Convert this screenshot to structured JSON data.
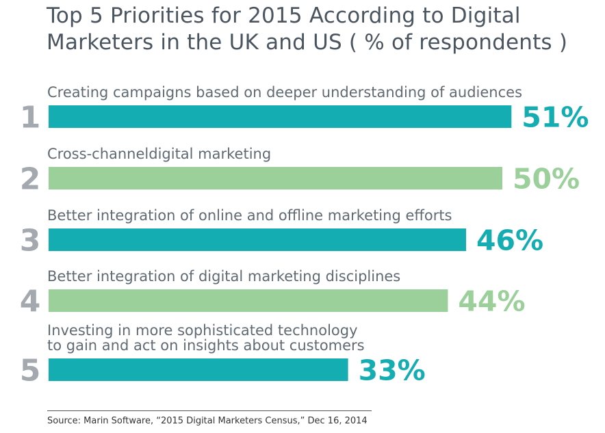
{
  "chart_data": {
    "type": "bar",
    "orientation": "horizontal",
    "title": "Top 5 Priorities for 2015 According to Digital Marketers in the UK and US ( % of respondents )",
    "xlim": [
      0,
      100
    ],
    "grid": false,
    "categories": [
      {
        "rank": "1",
        "label_lines": [
          "Creating campaigns based on deeper understanding of audiences"
        ],
        "value": 51,
        "value_label": "51%",
        "color": "#14adb1"
      },
      {
        "rank": "2",
        "label_lines": [
          "Cross-channeldigital marketing"
        ],
        "value": 50,
        "value_label": "50%",
        "color": "#9bd09a"
      },
      {
        "rank": "3",
        "label_lines": [
          "Better integration of online and offline marketing efforts"
        ],
        "value": 46,
        "value_label": "46%",
        "color": "#14adb1"
      },
      {
        "rank": "4",
        "label_lines": [
          "Better integration of digital marketing disciplines"
        ],
        "value": 44,
        "value_label": "44%",
        "color": "#9bd09a"
      },
      {
        "rank": "5",
        "label_lines": [
          "Investing in more sophisticated technology",
          "to gain and act on insights about customers"
        ],
        "value": 33,
        "value_label": "33%",
        "color": "#14adb1"
      }
    ],
    "source": "Source: Marin Software, “2015 Digital Marketers Census,” Dec 16, 2014"
  }
}
